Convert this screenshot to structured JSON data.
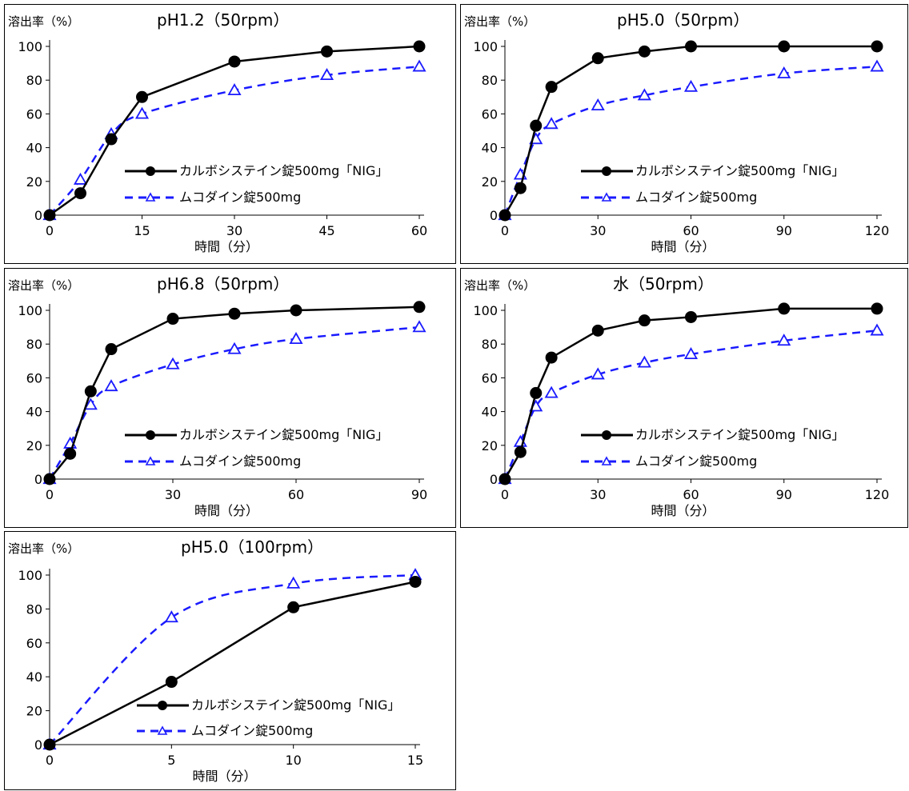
{
  "chart_data": [
    {
      "type": "line",
      "title": "pH1.2（50rpm）",
      "ylabel": "溶出率（%）",
      "xlabel": "時間（分）",
      "xlim": [
        0,
        60
      ],
      "ylim": [
        0,
        100
      ],
      "xticks": [
        0,
        15,
        30,
        45,
        60
      ],
      "yticks": [
        0,
        20,
        40,
        60,
        80,
        100
      ],
      "series": [
        {
          "name": "カルボシステイン錠500mg「NIG」",
          "color": "#000000",
          "style": "solid",
          "marker": "circle",
          "x": [
            0,
            5,
            10,
            15,
            30,
            45,
            60
          ],
          "values": [
            0,
            13,
            45,
            70,
            91,
            97,
            100
          ]
        },
        {
          "name": "ムコダイン錠500mg",
          "color": "#1a1aff",
          "style": "dashed",
          "marker": "triangle",
          "x": [
            0,
            5,
            10,
            15,
            30,
            45,
            60
          ],
          "values": [
            0,
            21,
            48,
            60,
            74,
            83,
            88
          ]
        }
      ]
    },
    {
      "type": "line",
      "title": "pH5.0（50rpm）",
      "ylabel": "溶出率（%）",
      "xlabel": "時間（分）",
      "xlim": [
        0,
        120
      ],
      "ylim": [
        0,
        100
      ],
      "xticks": [
        0,
        30,
        60,
        90,
        120
      ],
      "yticks": [
        0,
        20,
        40,
        60,
        80,
        100
      ],
      "series": [
        {
          "name": "カルボシステイン錠500mg「NIG」",
          "color": "#000000",
          "style": "solid",
          "marker": "circle",
          "x": [
            0,
            5,
            10,
            15,
            30,
            45,
            60,
            90,
            120
          ],
          "values": [
            0,
            16,
            53,
            76,
            93,
            97,
            100,
            100,
            100
          ]
        },
        {
          "name": "ムコダイン錠500mg",
          "color": "#1a1aff",
          "style": "dashed",
          "marker": "triangle",
          "x": [
            0,
            5,
            10,
            15,
            30,
            45,
            60,
            90,
            120
          ],
          "values": [
            0,
            24,
            45,
            54,
            65,
            71,
            76,
            84,
            88
          ]
        }
      ]
    },
    {
      "type": "line",
      "title": "pH6.8（50rpm）",
      "ylabel": "溶出率（%）",
      "xlabel": "時間（分）",
      "xlim": [
        0,
        90
      ],
      "ylim": [
        0,
        100
      ],
      "xticks": [
        0,
        30,
        60,
        90
      ],
      "yticks": [
        0,
        20,
        40,
        60,
        80,
        100
      ],
      "series": [
        {
          "name": "カルボシステイン錠500mg「NIG」",
          "color": "#000000",
          "style": "solid",
          "marker": "circle",
          "x": [
            0,
            5,
            10,
            15,
            30,
            45,
            60,
            90
          ],
          "values": [
            0,
            15,
            52,
            77,
            95,
            98,
            100,
            102
          ]
        },
        {
          "name": "ムコダイン錠500mg",
          "color": "#1a1aff",
          "style": "dashed",
          "marker": "triangle",
          "x": [
            0,
            5,
            10,
            15,
            30,
            45,
            60,
            90
          ],
          "values": [
            0,
            21,
            44,
            55,
            68,
            77,
            83,
            90
          ]
        }
      ]
    },
    {
      "type": "line",
      "title": "水（50rpm）",
      "ylabel": "溶出率（%）",
      "xlabel": "時間（分）",
      "xlim": [
        0,
        120
      ],
      "ylim": [
        0,
        100
      ],
      "xticks": [
        0,
        30,
        60,
        90,
        120
      ],
      "yticks": [
        0,
        20,
        40,
        60,
        80,
        100
      ],
      "series": [
        {
          "name": "カルボシステイン錠500mg「NIG」",
          "color": "#000000",
          "style": "solid",
          "marker": "circle",
          "x": [
            0,
            5,
            10,
            15,
            30,
            45,
            60,
            90,
            120
          ],
          "values": [
            0,
            16,
            51,
            72,
            88,
            94,
            96,
            101,
            101
          ]
        },
        {
          "name": "ムコダイン錠500mg",
          "color": "#1a1aff",
          "style": "dashed",
          "marker": "triangle",
          "x": [
            0,
            5,
            10,
            15,
            30,
            45,
            60,
            90,
            120
          ],
          "values": [
            0,
            22,
            43,
            51,
            62,
            69,
            74,
            82,
            88
          ]
        }
      ]
    },
    {
      "type": "line",
      "title": "pH5.0（100rpm）",
      "ylabel": "溶出率（%）",
      "xlabel": "時間（分）",
      "xlim": [
        0,
        15
      ],
      "ylim": [
        0,
        100
      ],
      "xticks": [
        0,
        5,
        10,
        15
      ],
      "yticks": [
        0,
        20,
        40,
        60,
        80,
        100
      ],
      "series": [
        {
          "name": "カルボシステイン錠500mg「NIG」",
          "color": "#000000",
          "style": "solid",
          "marker": "circle",
          "x": [
            0,
            5,
            10,
            15
          ],
          "values": [
            0,
            37,
            81,
            96
          ]
        },
        {
          "name": "ムコダイン錠500mg",
          "color": "#1a1aff",
          "style": "dashed",
          "marker": "triangle",
          "x": [
            0,
            5,
            10,
            15
          ],
          "values": [
            0,
            75,
            95,
            100
          ]
        }
      ]
    }
  ]
}
